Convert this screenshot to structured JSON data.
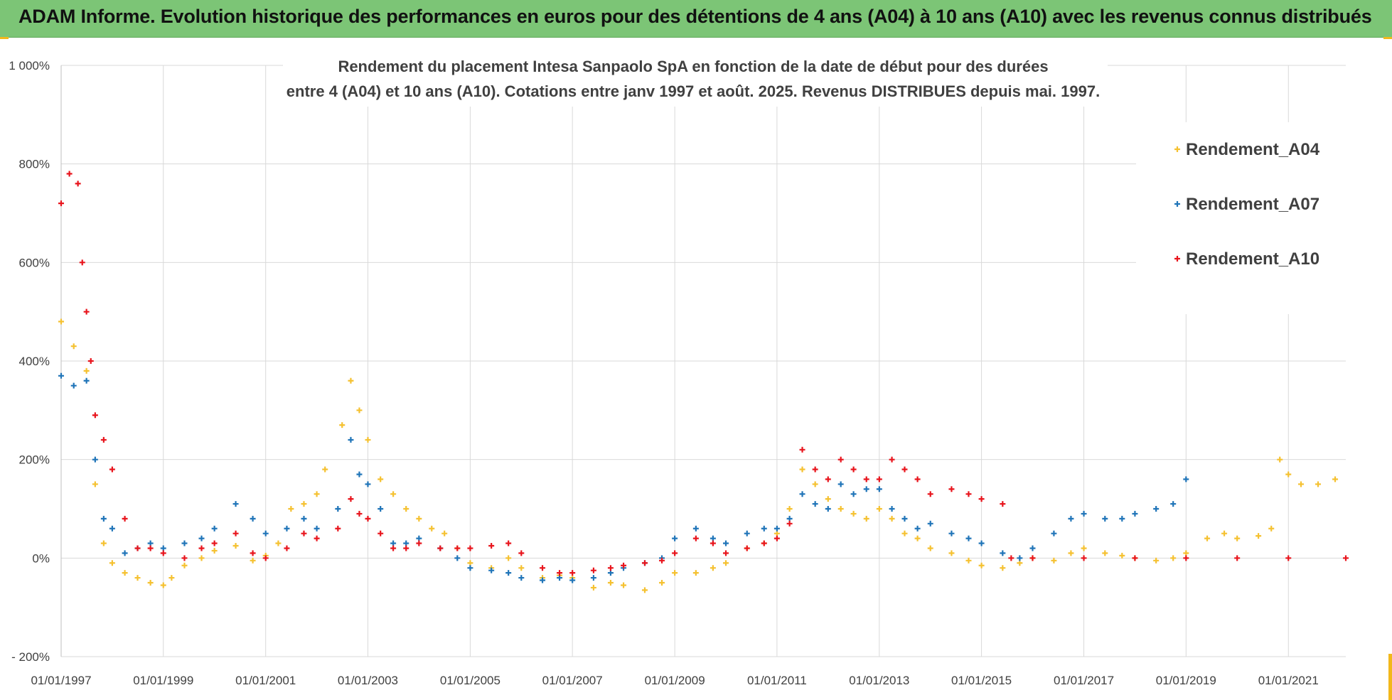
{
  "header": {
    "title": "ADAM Informe. Evolution historique des performances en euros pour des détentions de 4 ans (A04) à 10 ans (A10) avec les revenus connus distribués"
  },
  "colors": {
    "header_bg": "#7cc576",
    "a04": "#f5c130",
    "a07": "#1f74b8",
    "a10": "#e8141c",
    "grid": "#d9d9d9"
  },
  "chart_data": {
    "type": "scatter",
    "title": "Rendement du placement Intesa Sanpaolo SpA en fonction de la date de début pour des durées entre 4 (A04) et 10 ans (A10).  Cotations entre janv 1997 et août. 2025. Revenus DISTRIBUES depuis mai. 1997.",
    "title_lines": [
      "Rendement du placement Intesa Sanpaolo SpA en fonction de la date de début pour des durées",
      "entre 4 (A04) et 10 ans (A10).  Cotations entre janv 1997 et août. 2025. Revenus DISTRIBUES depuis mai. 1997."
    ],
    "xlabel": "",
    "ylabel": "",
    "x_type": "date",
    "xlim": [
      "1997-01-01",
      "2022-02-15"
    ],
    "ylim": [
      -200,
      1000
    ],
    "y_unit": "%",
    "y_ticks": [
      -200,
      0,
      200,
      400,
      600,
      800,
      1000
    ],
    "y_tick_labels": [
      "- 200%",
      "0%",
      "200%",
      "400%",
      "600%",
      "800%",
      "1 000%"
    ],
    "x_ticks": [
      "1997-01-01",
      "1999-01-01",
      "2001-01-01",
      "2003-01-01",
      "2005-01-01",
      "2007-01-01",
      "2009-01-01",
      "2011-01-01",
      "2013-01-01",
      "2015-01-01",
      "2017-01-01",
      "2019-01-01",
      "2021-01-01"
    ],
    "x_tick_labels": [
      "01/01/1997",
      "01/01/1999",
      "01/01/2001",
      "01/01/2003",
      "01/01/2005",
      "01/01/2007",
      "01/01/2009",
      "01/01/2011",
      "01/01/2013",
      "01/01/2015",
      "01/01/2017",
      "01/01/2019",
      "01/01/2021"
    ],
    "grid": true,
    "legend_position": "top-right",
    "marker": "+",
    "series": [
      {
        "name": "Rendement_A04",
        "color": "#f5c130",
        "points": [
          [
            "1997-01-01",
            480
          ],
          [
            "1997-04-01",
            430
          ],
          [
            "1997-07-01",
            380
          ],
          [
            "1997-09-01",
            150
          ],
          [
            "1997-11-01",
            30
          ],
          [
            "1998-01-01",
            -10
          ],
          [
            "1998-04-01",
            -30
          ],
          [
            "1998-07-01",
            -40
          ],
          [
            "1998-10-01",
            -50
          ],
          [
            "1999-01-01",
            -55
          ],
          [
            "1999-03-01",
            -40
          ],
          [
            "1999-06-01",
            -15
          ],
          [
            "1999-10-01",
            0
          ],
          [
            "2000-01-01",
            15
          ],
          [
            "2000-06-01",
            25
          ],
          [
            "2000-10-01",
            -5
          ],
          [
            "2001-01-01",
            5
          ],
          [
            "2001-04-01",
            30
          ],
          [
            "2001-07-01",
            100
          ],
          [
            "2001-10-01",
            110
          ],
          [
            "2002-01-01",
            130
          ],
          [
            "2002-03-01",
            180
          ],
          [
            "2002-07-01",
            270
          ],
          [
            "2002-09-01",
            360
          ],
          [
            "2002-11-01",
            300
          ],
          [
            "2003-01-01",
            240
          ],
          [
            "2003-04-01",
            160
          ],
          [
            "2003-07-01",
            130
          ],
          [
            "2003-10-01",
            100
          ],
          [
            "2004-01-01",
            80
          ],
          [
            "2004-04-01",
            60
          ],
          [
            "2004-07-01",
            50
          ],
          [
            "2004-10-01",
            20
          ],
          [
            "2005-01-01",
            -10
          ],
          [
            "2005-06-01",
            -20
          ],
          [
            "2005-10-01",
            0
          ],
          [
            "2006-01-01",
            -20
          ],
          [
            "2006-06-01",
            -40
          ],
          [
            "2006-10-01",
            -35
          ],
          [
            "2007-01-01",
            -40
          ],
          [
            "2007-06-01",
            -60
          ],
          [
            "2007-10-01",
            -50
          ],
          [
            "2008-01-01",
            -55
          ],
          [
            "2008-06-01",
            -65
          ],
          [
            "2008-10-01",
            -50
          ],
          [
            "2009-01-01",
            -30
          ],
          [
            "2009-06-01",
            -30
          ],
          [
            "2009-10-01",
            -20
          ],
          [
            "2010-01-01",
            -10
          ],
          [
            "2010-06-01",
            20
          ],
          [
            "2010-10-01",
            30
          ],
          [
            "2011-01-01",
            50
          ],
          [
            "2011-04-01",
            100
          ],
          [
            "2011-07-01",
            180
          ],
          [
            "2011-10-01",
            150
          ],
          [
            "2012-01-01",
            120
          ],
          [
            "2012-04-01",
            100
          ],
          [
            "2012-07-01",
            90
          ],
          [
            "2012-10-01",
            80
          ],
          [
            "2013-01-01",
            100
          ],
          [
            "2013-04-01",
            80
          ],
          [
            "2013-07-01",
            50
          ],
          [
            "2013-10-01",
            40
          ],
          [
            "2014-01-01",
            20
          ],
          [
            "2014-06-01",
            10
          ],
          [
            "2014-10-01",
            -5
          ],
          [
            "2015-01-01",
            -15
          ],
          [
            "2015-06-01",
            -20
          ],
          [
            "2015-10-01",
            -10
          ],
          [
            "2016-01-01",
            0
          ],
          [
            "2016-06-01",
            -5
          ],
          [
            "2016-10-01",
            10
          ],
          [
            "2017-01-01",
            20
          ],
          [
            "2017-06-01",
            10
          ],
          [
            "2017-10-01",
            5
          ],
          [
            "2018-01-01",
            0
          ],
          [
            "2018-06-01",
            -5
          ],
          [
            "2018-10-01",
            0
          ],
          [
            "2019-01-01",
            10
          ],
          [
            "2019-06-01",
            40
          ],
          [
            "2019-10-01",
            50
          ],
          [
            "2020-01-01",
            40
          ],
          [
            "2020-06-01",
            45
          ],
          [
            "2020-09-01",
            60
          ],
          [
            "2020-11-01",
            200
          ],
          [
            "2021-01-01",
            170
          ],
          [
            "2021-04-01",
            150
          ],
          [
            "2021-08-01",
            150
          ],
          [
            "2021-12-01",
            160
          ]
        ]
      },
      {
        "name": "Rendement_A07",
        "color": "#1f74b8",
        "points": [
          [
            "1997-01-01",
            370
          ],
          [
            "1997-04-01",
            350
          ],
          [
            "1997-07-01",
            360
          ],
          [
            "1997-09-01",
            200
          ],
          [
            "1997-11-01",
            80
          ],
          [
            "1998-01-01",
            60
          ],
          [
            "1998-04-01",
            10
          ],
          [
            "1998-07-01",
            20
          ],
          [
            "1998-10-01",
            30
          ],
          [
            "1999-01-01",
            20
          ],
          [
            "1999-06-01",
            30
          ],
          [
            "1999-10-01",
            40
          ],
          [
            "2000-01-01",
            60
          ],
          [
            "2000-06-01",
            110
          ],
          [
            "2000-10-01",
            80
          ],
          [
            "2001-01-01",
            50
          ],
          [
            "2001-06-01",
            60
          ],
          [
            "2001-10-01",
            80
          ],
          [
            "2002-01-01",
            60
          ],
          [
            "2002-06-01",
            100
          ],
          [
            "2002-09-01",
            240
          ],
          [
            "2002-11-01",
            170
          ],
          [
            "2003-01-01",
            150
          ],
          [
            "2003-04-01",
            100
          ],
          [
            "2003-07-01",
            30
          ],
          [
            "2003-10-01",
            30
          ],
          [
            "2004-01-01",
            40
          ],
          [
            "2004-06-01",
            20
          ],
          [
            "2004-10-01",
            0
          ],
          [
            "2005-01-01",
            -20
          ],
          [
            "2005-06-01",
            -25
          ],
          [
            "2005-10-01",
            -30
          ],
          [
            "2006-01-01",
            -40
          ],
          [
            "2006-06-01",
            -45
          ],
          [
            "2006-10-01",
            -40
          ],
          [
            "2007-01-01",
            -45
          ],
          [
            "2007-06-01",
            -40
          ],
          [
            "2007-10-01",
            -30
          ],
          [
            "2008-01-01",
            -20
          ],
          [
            "2008-06-01",
            -10
          ],
          [
            "2008-10-01",
            0
          ],
          [
            "2009-01-01",
            40
          ],
          [
            "2009-06-01",
            60
          ],
          [
            "2009-10-01",
            40
          ],
          [
            "2010-01-01",
            30
          ],
          [
            "2010-06-01",
            50
          ],
          [
            "2010-10-01",
            60
          ],
          [
            "2011-01-01",
            60
          ],
          [
            "2011-04-01",
            80
          ],
          [
            "2011-07-01",
            130
          ],
          [
            "2011-10-01",
            110
          ],
          [
            "2012-01-01",
            100
          ],
          [
            "2012-04-01",
            150
          ],
          [
            "2012-07-01",
            130
          ],
          [
            "2012-10-01",
            140
          ],
          [
            "2013-01-01",
            140
          ],
          [
            "2013-04-01",
            100
          ],
          [
            "2013-07-01",
            80
          ],
          [
            "2013-10-01",
            60
          ],
          [
            "2014-01-01",
            70
          ],
          [
            "2014-06-01",
            50
          ],
          [
            "2014-10-01",
            40
          ],
          [
            "2015-01-01",
            30
          ],
          [
            "2015-06-01",
            10
          ],
          [
            "2015-10-01",
            0
          ],
          [
            "2016-01-01",
            20
          ],
          [
            "2016-06-01",
            50
          ],
          [
            "2016-10-01",
            80
          ],
          [
            "2017-01-01",
            90
          ],
          [
            "2017-06-01",
            80
          ],
          [
            "2017-10-01",
            80
          ],
          [
            "2018-01-01",
            90
          ],
          [
            "2018-06-01",
            100
          ],
          [
            "2018-10-01",
            110
          ],
          [
            "2019-01-01",
            160
          ]
        ]
      },
      {
        "name": "Rendement_A10",
        "color": "#e8141c",
        "points": [
          [
            "1997-01-01",
            720
          ],
          [
            "1997-03-01",
            780
          ],
          [
            "1997-05-01",
            760
          ],
          [
            "1997-06-01",
            600
          ],
          [
            "1997-07-01",
            500
          ],
          [
            "1997-08-01",
            400
          ],
          [
            "1997-09-01",
            290
          ],
          [
            "1997-11-01",
            240
          ],
          [
            "1998-01-01",
            180
          ],
          [
            "1998-04-01",
            80
          ],
          [
            "1998-07-01",
            20
          ],
          [
            "1998-10-01",
            20
          ],
          [
            "1999-01-01",
            10
          ],
          [
            "1999-06-01",
            0
          ],
          [
            "1999-10-01",
            20
          ],
          [
            "2000-01-01",
            30
          ],
          [
            "2000-06-01",
            50
          ],
          [
            "2000-10-01",
            10
          ],
          [
            "2001-01-01",
            0
          ],
          [
            "2001-06-01",
            20
          ],
          [
            "2001-10-01",
            50
          ],
          [
            "2002-01-01",
            40
          ],
          [
            "2002-06-01",
            60
          ],
          [
            "2002-09-01",
            120
          ],
          [
            "2002-11-01",
            90
          ],
          [
            "2003-01-01",
            80
          ],
          [
            "2003-04-01",
            50
          ],
          [
            "2003-07-01",
            20
          ],
          [
            "2003-10-01",
            20
          ],
          [
            "2004-01-01",
            30
          ],
          [
            "2004-06-01",
            20
          ],
          [
            "2004-10-01",
            20
          ],
          [
            "2005-01-01",
            20
          ],
          [
            "2005-06-01",
            25
          ],
          [
            "2005-10-01",
            30
          ],
          [
            "2006-01-01",
            10
          ],
          [
            "2006-06-01",
            -20
          ],
          [
            "2006-10-01",
            -30
          ],
          [
            "2007-01-01",
            -30
          ],
          [
            "2007-06-01",
            -25
          ],
          [
            "2007-10-01",
            -20
          ],
          [
            "2008-01-01",
            -15
          ],
          [
            "2008-06-01",
            -10
          ],
          [
            "2008-10-01",
            -5
          ],
          [
            "2009-01-01",
            10
          ],
          [
            "2009-06-01",
            40
          ],
          [
            "2009-10-01",
            30
          ],
          [
            "2010-01-01",
            10
          ],
          [
            "2010-06-01",
            20
          ],
          [
            "2010-10-01",
            30
          ],
          [
            "2011-01-01",
            40
          ],
          [
            "2011-04-01",
            70
          ],
          [
            "2011-07-01",
            220
          ],
          [
            "2011-10-01",
            180
          ],
          [
            "2012-01-01",
            160
          ],
          [
            "2012-04-01",
            200
          ],
          [
            "2012-07-01",
            180
          ],
          [
            "2012-10-01",
            160
          ],
          [
            "2013-01-01",
            160
          ],
          [
            "2013-04-01",
            200
          ],
          [
            "2013-07-01",
            180
          ],
          [
            "2013-10-01",
            160
          ],
          [
            "2014-01-01",
            130
          ],
          [
            "2014-06-01",
            140
          ],
          [
            "2014-10-01",
            130
          ],
          [
            "2015-01-01",
            120
          ],
          [
            "2015-06-01",
            110
          ],
          [
            "2015-08-01",
            0
          ],
          [
            "2016-01-01",
            0
          ],
          [
            "2017-01-01",
            0
          ],
          [
            "2018-01-01",
            0
          ],
          [
            "2019-01-01",
            0
          ],
          [
            "2020-01-01",
            0
          ],
          [
            "2021-01-01",
            0
          ],
          [
            "2022-02-15",
            0
          ]
        ]
      }
    ]
  }
}
